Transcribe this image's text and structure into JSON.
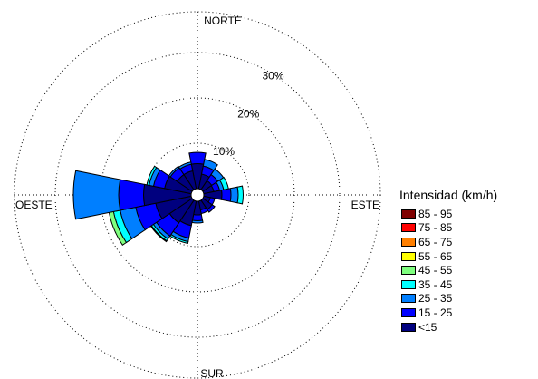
{
  "chart_data": {
    "type": "windrose",
    "legend_title": "Intensidad (km/h)",
    "legend_placement": "right",
    "directions": {
      "north": "NORTE",
      "south": "SUR",
      "east": "ESTE",
      "west": "OESTE"
    },
    "radial_ticks": [
      {
        "value": 10,
        "label": "10%"
      },
      {
        "value": 20,
        "label": "20%"
      },
      {
        "value": 30,
        "label": "30%"
      }
    ],
    "rmax": 39,
    "speed_bins": [
      {
        "label": "<15",
        "color": "#00007f"
      },
      {
        "label": "15 - 25",
        "color": "#0000ff"
      },
      {
        "label": "25 - 35",
        "color": "#007fff"
      },
      {
        "label": "35 - 45",
        "color": "#00ffff"
      },
      {
        "label": "45 - 55",
        "color": "#7fff7f"
      },
      {
        "label": "55 - 65",
        "color": "#ffff00"
      },
      {
        "label": "65 - 75",
        "color": "#ff7f00"
      },
      {
        "label": "75 - 85",
        "color": "#ff0000"
      },
      {
        "label": "85 - 95",
        "color": "#7f0000"
      }
    ],
    "sector_width_deg": 22.5,
    "sectors": [
      {
        "direction_deg": 0,
        "cumulative": [
          5.5,
          8.0
        ]
      },
      {
        "direction_deg": 22.5,
        "cumulative": [
          3.3,
          5.1,
          6.6
        ]
      },
      {
        "direction_deg": 45,
        "cumulative": [
          2.4,
          4.0,
          5.5
        ]
      },
      {
        "direction_deg": 67.5,
        "cumulative": [
          2.3,
          3.6,
          4.5,
          5.6
        ]
      },
      {
        "direction_deg": 90,
        "cumulative": [
          4.0,
          6.0,
          7.6,
          8.7
        ]
      },
      {
        "direction_deg": 112.5,
        "cumulative": [
          1.5,
          2.5
        ]
      },
      {
        "direction_deg": 135,
        "cumulative": [
          2.5,
          3.2
        ]
      },
      {
        "direction_deg": 157.5,
        "cumulative": [
          2.0,
          2.8
        ]
      },
      {
        "direction_deg": 180,
        "cumulative": [
          3.0,
          4.3,
          4.8
        ]
      },
      {
        "direction_deg": 202.5,
        "cumulative": [
          5.5,
          8.3,
          9.1,
          9.5
        ]
      },
      {
        "direction_deg": 225,
        "cumulative": [
          6.0,
          9.5,
          10.3,
          10.8,
          11.0
        ]
      },
      {
        "direction_deg": 247.5,
        "cumulative": [
          8.0,
          12.5,
          16.0,
          17.5,
          18.5
        ]
      },
      {
        "direction_deg": 270,
        "cumulative": [
          10.5,
          16.0,
          26.0
        ]
      },
      {
        "direction_deg": 292.5,
        "cumulative": [
          6.0,
          8.5,
          9.5,
          10.0
        ]
      },
      {
        "direction_deg": 315,
        "cumulative": [
          4.0,
          5.8,
          6.2
        ]
      },
      {
        "direction_deg": 337.5,
        "cumulative": [
          4.0,
          5.5,
          6.0
        ]
      }
    ]
  }
}
